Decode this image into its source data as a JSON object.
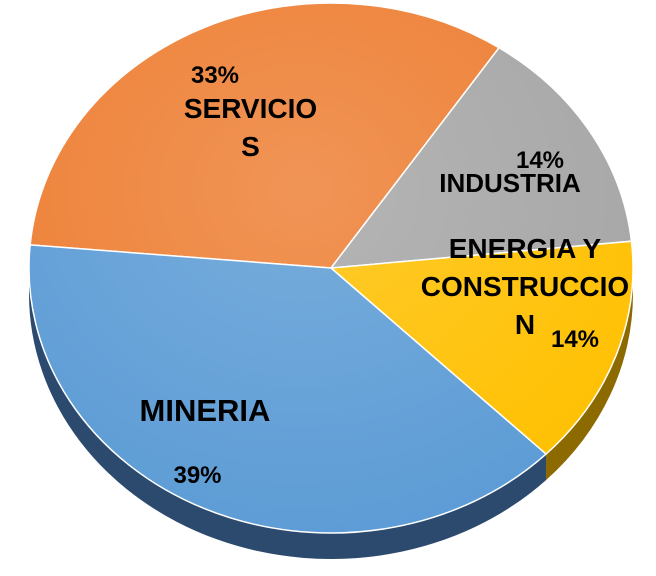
{
  "chart_data": {
    "type": "pie",
    "categories": [
      "SERVICIOS",
      "INDUSTRIA",
      "ENERGIA Y CONSTRUCCION",
      "MINERIA"
    ],
    "values": [
      33,
      14,
      14,
      39
    ],
    "value_labels": [
      "33%",
      "14%",
      "14%",
      "39%"
    ],
    "colors": [
      "#ed7d31",
      "#a5a5a5",
      "#ffc000",
      "#5b9bd5"
    ],
    "side_colors": [
      "#a8531c",
      "#6e6e6e",
      "#8c6a00",
      "#2b4a6e"
    ]
  }
}
